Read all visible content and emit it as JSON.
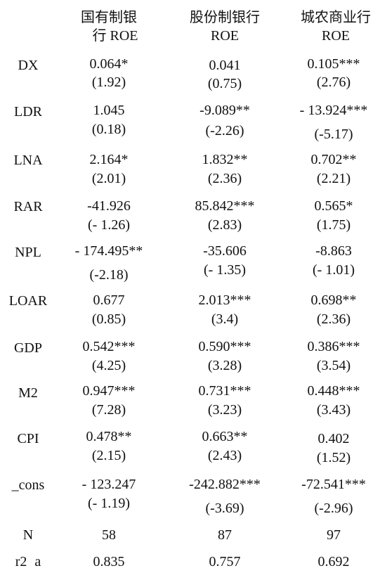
{
  "headers": {
    "col1": [
      "国有制银",
      "行 ROE"
    ],
    "col2": [
      "股份制银行",
      "ROE"
    ],
    "col3": [
      "城农商业行",
      "ROE"
    ]
  },
  "rows": [
    {
      "label": "DX",
      "c1": [
        "0.064*",
        "(1.92)"
      ],
      "c2": [
        "0.041",
        "(0.75)"
      ],
      "c3": [
        "0.105***",
        "(2.76)"
      ]
    },
    {
      "label": "LDR",
      "c1": [
        "1.045",
        "(0.18)"
      ],
      "c2": [
        "-9.089**",
        "(-2.26)"
      ],
      "c3": [
        "- 13.924***",
        "(-5.17)"
      ]
    },
    {
      "label": "LNA",
      "c1": [
        "2.164*",
        "(2.01)"
      ],
      "c2": [
        "1.832**",
        "(2.36)"
      ],
      "c3": [
        "0.702**",
        "(2.21)"
      ]
    },
    {
      "label": "RAR",
      "c1": [
        "-41.926",
        "(- 1.26)"
      ],
      "c2": [
        "85.842***",
        "(2.83)"
      ],
      "c3": [
        "0.565*",
        "(1.75)"
      ]
    },
    {
      "label": "NPL",
      "c1": [
        "- 174.495**",
        "(-2.18)"
      ],
      "c2": [
        "-35.606",
        "(- 1.35)"
      ],
      "c3": [
        "-8.863",
        "(- 1.01)"
      ]
    },
    {
      "label": "LOAR",
      "c1": [
        "0.677",
        "(0.85)"
      ],
      "c2": [
        "2.013***",
        "(3.4)"
      ],
      "c3": [
        "0.698**",
        "(2.36)"
      ]
    },
    {
      "label": "GDP",
      "c1": [
        "0.542***",
        "(4.25)"
      ],
      "c2": [
        "0.590***",
        "(3.28)"
      ],
      "c3": [
        "0.386***",
        "(3.54)"
      ]
    },
    {
      "label": "M2",
      "c1": [
        "0.947***",
        "(7.28)"
      ],
      "c2": [
        "0.731***",
        "(3.23)"
      ],
      "c3": [
        "0.448***",
        "(3.43)"
      ]
    },
    {
      "label": "CPI",
      "c1": [
        "0.478**",
        "(2.15)"
      ],
      "c2": [
        "0.663**",
        "(2.43)"
      ],
      "c3": [
        "0.402",
        "(1.52)"
      ]
    },
    {
      "label": "_cons",
      "c1": [
        "- 123.247",
        "(- 1.19)"
      ],
      "c2": [
        "-242.882***",
        "(-3.69)"
      ],
      "c3": [
        "-72.541***",
        "(-2.96)"
      ]
    },
    {
      "label": "N",
      "c1": [
        "58"
      ],
      "c2": [
        "87"
      ],
      "c3": [
        "97"
      ]
    },
    {
      "label": "r2 a",
      "c1": [
        "0.835"
      ],
      "c2": [
        "0.757"
      ],
      "c3": [
        "0.692"
      ]
    }
  ]
}
